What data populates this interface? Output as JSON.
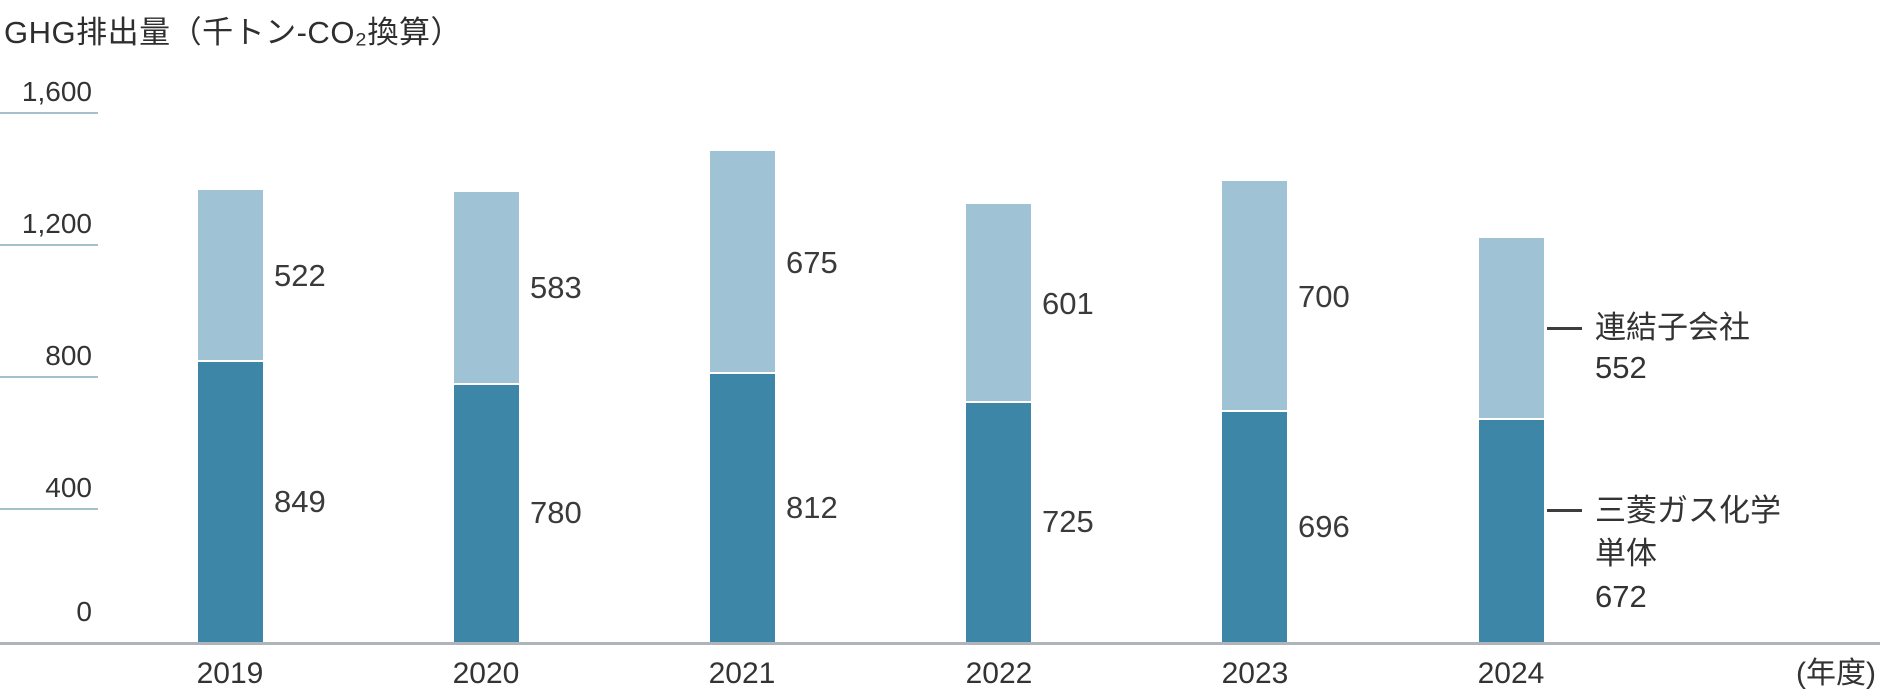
{
  "chart_data": {
    "type": "bar",
    "stacked": true,
    "title": "GHG排出量（千トン-CO₂換算）",
    "categories": [
      "2019",
      "2020",
      "2021",
      "2022",
      "2023",
      "2024"
    ],
    "series": [
      {
        "name": "三菱ガス化学単体",
        "color": "#3d86a8",
        "values": [
          849,
          780,
          812,
          725,
          696,
          672
        ]
      },
      {
        "name": "連結子会社",
        "color": "#9fc3d5",
        "values": [
          522,
          583,
          675,
          601,
          700,
          552
        ]
      }
    ],
    "totals": [
      1371,
      1363,
      1487,
      1326,
      1396,
      1224
    ],
    "ylim": [
      0,
      1600
    ],
    "yticks": [
      0,
      400,
      800,
      1200,
      1600
    ],
    "ytick_labels": [
      "0",
      "400",
      "800",
      "1,200",
      "1,600"
    ],
    "x_axis_unit": "(年度)",
    "grid": "short tick underlines on left axis only, no full gridlines",
    "legend_position": "callout labels to the right of the 2024 bar",
    "value_labels": "each segment value printed to the right of its bar, except 2024 whose values appear in the legend callouts"
  },
  "legend": {
    "subsidiaries": {
      "label": "連結子会社",
      "value": "552"
    },
    "parent": {
      "label_line1": "三菱ガス化学",
      "label_line2": "単体",
      "value": "672"
    }
  },
  "colors": {
    "parent_bar": "#3d86a8",
    "subsidiaries_bar": "#9fc3d5",
    "tick_line": "#a3c0cc",
    "baseline": "#aeb4b8",
    "text": "#333333",
    "connector": "#3d3d3d",
    "background": "#ffffff"
  }
}
